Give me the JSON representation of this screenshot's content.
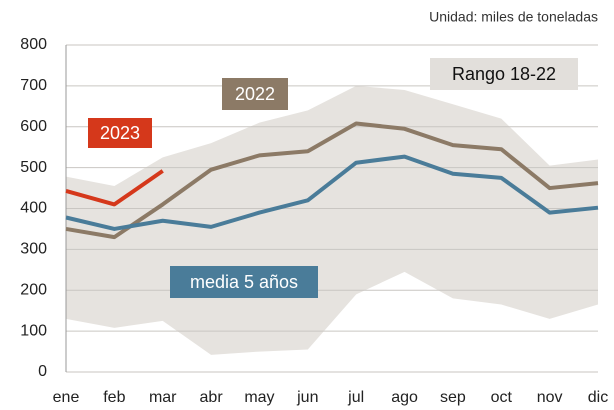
{
  "chart_data": {
    "type": "line",
    "subtitle": "Unidad: miles de toneladas",
    "categories": [
      "ene",
      "feb",
      "mar",
      "abr",
      "may",
      "jun",
      "jul",
      "ago",
      "sep",
      "oct",
      "nov",
      "dic"
    ],
    "ylim": [
      0,
      800
    ],
    "yticks": [
      0,
      100,
      200,
      300,
      400,
      500,
      600,
      700,
      800
    ],
    "grid": true,
    "range": {
      "name": "Rango 18-22",
      "color": "#e6e3df",
      "lower": [
        130,
        108,
        125,
        42,
        50,
        55,
        190,
        245,
        180,
        165,
        130,
        165
      ],
      "upper": [
        478,
        455,
        525,
        560,
        610,
        640,
        700,
        690,
        655,
        620,
        505,
        520
      ]
    },
    "series": [
      {
        "name": "2022",
        "color": "#8c7a66",
        "values": [
          350,
          330,
          410,
          495,
          530,
          540,
          608,
          595,
          555,
          545,
          450,
          462
        ]
      },
      {
        "name": "2023",
        "color": "#d5381b",
        "values": [
          443,
          410,
          492,
          null,
          null,
          null,
          null,
          null,
          null,
          null,
          null,
          null
        ]
      },
      {
        "name": "media 5 años",
        "color": "#4a7c99",
        "values": [
          378,
          350,
          370,
          355,
          390,
          420,
          512,
          527,
          485,
          475,
          390,
          402
        ]
      }
    ]
  }
}
